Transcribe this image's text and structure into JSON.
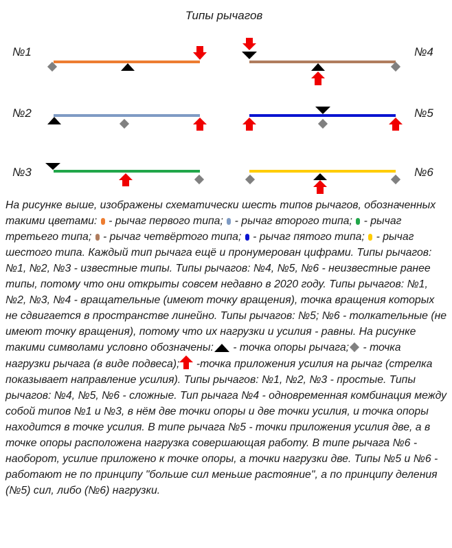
{
  "title": "Типы рычагов",
  "colors": {
    "lever1": "#ED7D31",
    "lever2": "#7F9BC4",
    "lever3": "#21A64A",
    "lever4": "#B07D5E",
    "lever5": "#0A14D0",
    "lever6": "#FFCC00",
    "support": "#000000",
    "load": "#808080",
    "force": "#F00000"
  },
  "levers": [
    {
      "label": "№1",
      "type": 1
    },
    {
      "label": "№2",
      "type": 2
    },
    {
      "label": "№3",
      "type": 3
    },
    {
      "label": "№4",
      "type": 4
    },
    {
      "label": "№5",
      "type": 5
    },
    {
      "label": "№6",
      "type": 6
    }
  ],
  "description": {
    "p1": "На рисунке выше, изображены схематически шесть типов рычагов, обозначенных такими цветами:",
    "p2": " - рычаг первого типа;",
    "p3": " - рычаг второго типа;",
    "p4": " - рычаг третьего типа;",
    "p5": " - рычаг четвёртого типа;",
    "p6": " - рычаг пятого типа;",
    "p7": " - рычаг шестого типа. Каждый тип рычага ещё и пронумерован цифрами. Типы рычагов: №1, №2, №3 - известные типы. Типы рычагов: №4, №5, №6 - неизвестные ранее типы, потому что они открыты совсем недавно в 2020 году. Типы рычагов: №1, №2, №3, №4 - вращательные (имеют точку вращения), точка вращения которых не сдвигается в пространстве линейно. Типы рычагов: №5; №6 - толкательные (не имеют точку вращения), потому что их нагрузки и усилия - равны. На рисунке такими символами условно обозначены:",
    "p8": " - точка опоры рычага;",
    "p9": " - точка нагрузки рычага (в виде подвеса);",
    "p10": " -точка приложения усилия на рычаг (стрелка показывает направление усилия). Типы рычагов: №1, №2, №3 - простые. Типы рычагов: №4, №5, №6 - сложные. Тип рычага №4 - одновременная комбинация между собой типов №1 и №3, в нём две точки опоры и две точки усилия, и точка опоры находится в точке усилия. В типе рычага №5 - точки приложения усилия две, а в точке опоры расположена нагрузка совершающая работу. В типе рычага №6 - наоборот, усилие приложено к точке опоры, а точки нагрузки две. Типы №5 и №6 - работают  не по принципу \"больше сил меньше растояние\", а по принципу деления (№5) сил, либо (№6) нагрузки."
  }
}
